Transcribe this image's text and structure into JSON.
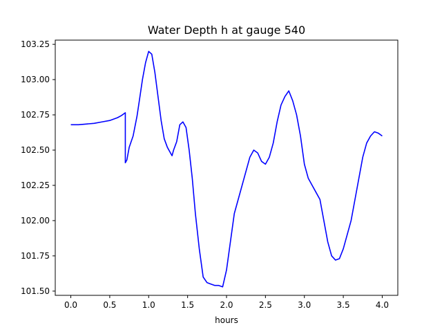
{
  "chart_data": {
    "type": "line",
    "title": "Water Depth h at gauge 540",
    "xlabel": "hours",
    "ylabel": "",
    "xlim": [
      -0.2,
      4.2
    ],
    "ylim": [
      101.47,
      103.28
    ],
    "xticks": [
      0.0,
      0.5,
      1.0,
      1.5,
      2.0,
      2.5,
      3.0,
      3.5,
      4.0
    ],
    "xtick_labels": [
      "0.0",
      "0.5",
      "1.0",
      "1.5",
      "2.0",
      "2.5",
      "3.0",
      "3.5",
      "4.0"
    ],
    "yticks": [
      101.5,
      101.75,
      102.0,
      102.25,
      102.5,
      102.75,
      103.0,
      103.25
    ],
    "ytick_labels": [
      "101.50",
      "101.75",
      "102.00",
      "102.25",
      "102.50",
      "102.75",
      "103.00",
      "103.25"
    ],
    "grid": false,
    "legend": "none",
    "series": [
      {
        "color": "#0000ff",
        "x": [
          0.0,
          0.1,
          0.2,
          0.3,
          0.4,
          0.5,
          0.6,
          0.65,
          0.7,
          0.7,
          0.72,
          0.75,
          0.8,
          0.85,
          0.88,
          0.92,
          0.96,
          1.0,
          1.04,
          1.08,
          1.12,
          1.16,
          1.2,
          1.24,
          1.28,
          1.3,
          1.32,
          1.36,
          1.4,
          1.44,
          1.48,
          1.52,
          1.56,
          1.6,
          1.65,
          1.7,
          1.75,
          1.8,
          1.85,
          1.9,
          1.95,
          2.0,
          2.05,
          2.1,
          2.15,
          2.2,
          2.25,
          2.3,
          2.35,
          2.4,
          2.45,
          2.5,
          2.55,
          2.6,
          2.65,
          2.7,
          2.75,
          2.8,
          2.85,
          2.9,
          2.95,
          3.0,
          3.05,
          3.1,
          3.15,
          3.2,
          3.25,
          3.3,
          3.35,
          3.4,
          3.45,
          3.5,
          3.55,
          3.6,
          3.65,
          3.7,
          3.75,
          3.8,
          3.85,
          3.9,
          3.95,
          4.0
        ],
        "y": [
          102.68,
          102.68,
          102.685,
          102.69,
          102.7,
          102.71,
          102.73,
          102.745,
          102.765,
          102.41,
          102.43,
          102.52,
          102.6,
          102.74,
          102.85,
          103.0,
          103.12,
          103.2,
          103.18,
          103.05,
          102.88,
          102.71,
          102.58,
          102.52,
          102.48,
          102.46,
          102.5,
          102.56,
          102.68,
          102.7,
          102.66,
          102.5,
          102.3,
          102.05,
          101.8,
          101.6,
          101.56,
          101.55,
          101.54,
          101.54,
          101.53,
          101.65,
          101.85,
          102.05,
          102.15,
          102.25,
          102.35,
          102.45,
          102.5,
          102.48,
          102.42,
          102.4,
          102.45,
          102.55,
          102.7,
          102.82,
          102.88,
          102.92,
          102.85,
          102.75,
          102.6,
          102.4,
          102.3,
          102.25,
          102.2,
          102.15,
          102.0,
          101.85,
          101.75,
          101.72,
          101.73,
          101.8,
          101.9,
          102.0,
          102.15,
          102.3,
          102.45,
          102.55,
          102.6,
          102.63,
          102.62,
          102.6
        ]
      }
    ]
  }
}
